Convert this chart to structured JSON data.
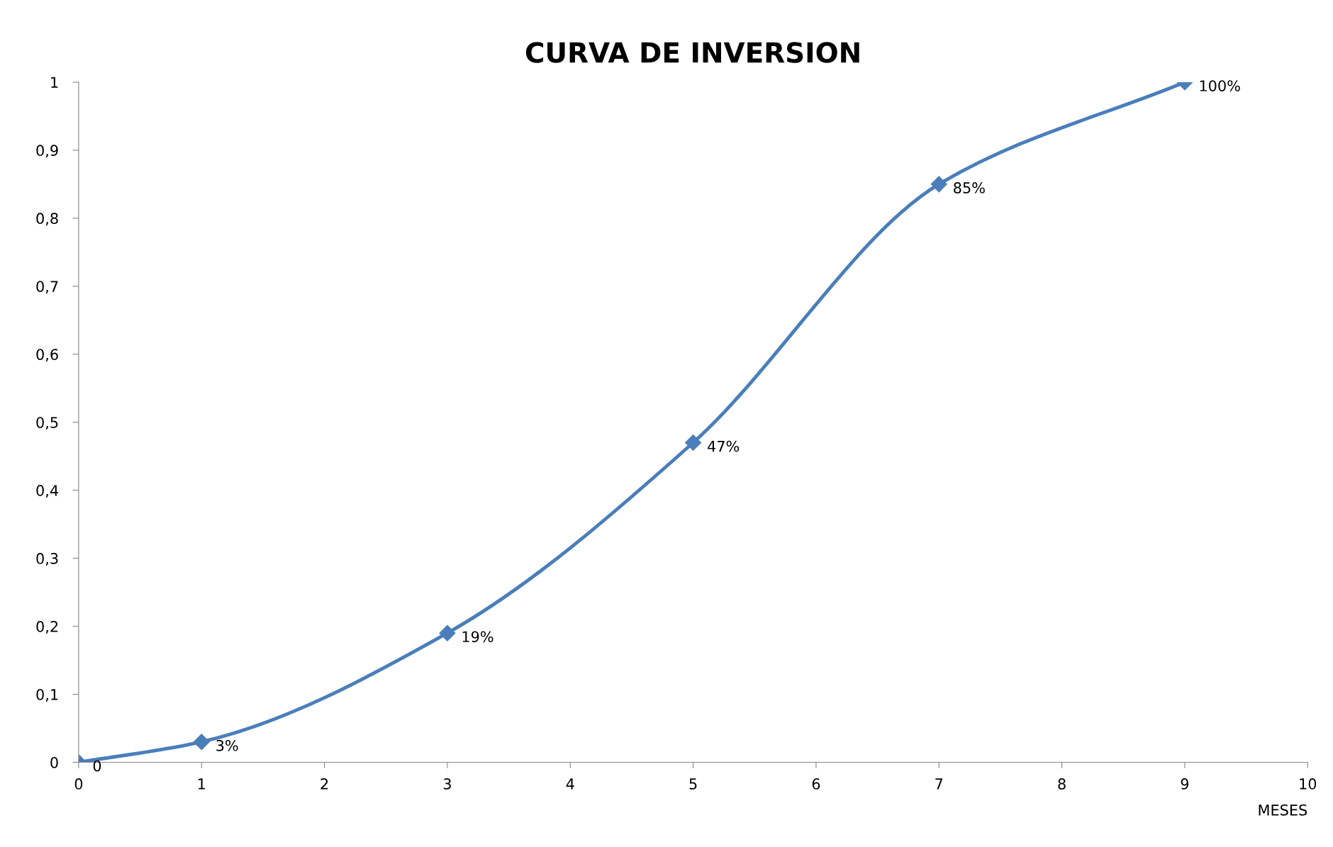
{
  "chart_data": {
    "type": "line",
    "title": "CURVA DE INVERSION",
    "xlabel": "MESES",
    "x": [
      0,
      1,
      3,
      5,
      7,
      9
    ],
    "series": [
      {
        "color": "#4a7ebb",
        "values": [
          0,
          0.03,
          0.19,
          0.47,
          0.85,
          1
        ],
        "value_labels": [
          "0",
          "3%",
          "19%",
          "47%",
          "85%",
          "100%"
        ]
      }
    ],
    "xlim": [
      0,
      10
    ],
    "xticks": [
      0,
      1,
      2,
      3,
      4,
      5,
      6,
      7,
      8,
      9,
      10
    ],
    "ylim": [
      0,
      1
    ],
    "yticks": [
      0,
      {
        "value": 0.1,
        "label": "0,1"
      },
      {
        "value": 0.2,
        "label": "0,2"
      },
      {
        "value": 0.3,
        "label": "0,3"
      },
      {
        "value": 0.4,
        "label": "0,4"
      },
      {
        "value": 0.5,
        "label": "0,5"
      },
      {
        "value": 0.6,
        "label": "0,6"
      },
      {
        "value": 0.7,
        "label": "0,7"
      },
      {
        "value": 0.8,
        "label": "0,8"
      },
      {
        "value": 0.9,
        "label": "0,9"
      },
      1
    ],
    "grid": false,
    "legend": false,
    "marker": "diamond",
    "line_style": "solid"
  }
}
